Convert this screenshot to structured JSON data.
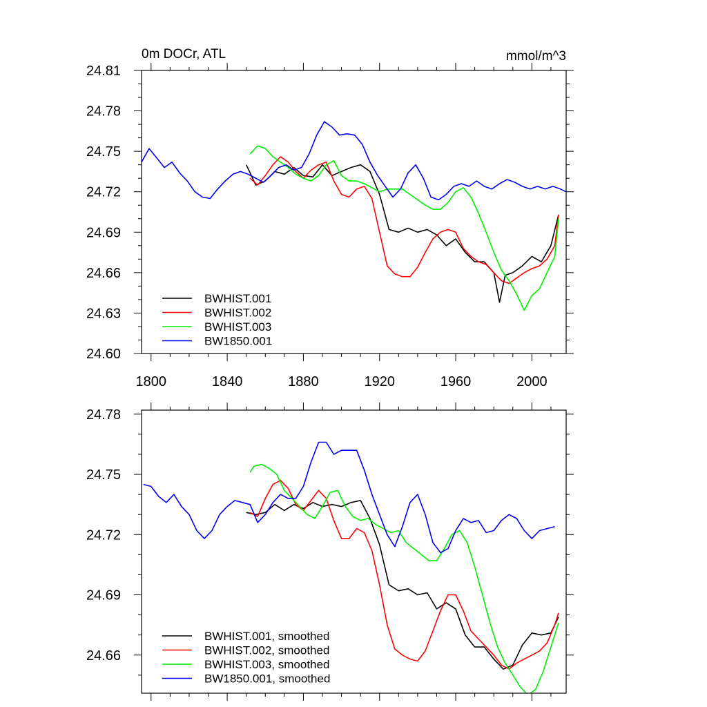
{
  "chart_data": [
    {
      "type": "line",
      "title_left": "0m DOCr, ATL",
      "title_right": "mmol/m^3",
      "xlabel": "",
      "ylabel": "",
      "xlim": [
        1795,
        2018
      ],
      "ylim": [
        24.6,
        24.81
      ],
      "xticks": [
        1800,
        1840,
        1880,
        1920,
        1960,
        2000
      ],
      "xtick_labels": [
        "1800",
        "1840",
        "1880",
        "1920",
        "1960",
        "2000"
      ],
      "yticks": [
        24.6,
        24.63,
        24.66,
        24.69,
        24.72,
        24.75,
        24.78,
        24.81
      ],
      "ytick_labels": [
        "24.60",
        "24.63",
        "24.66",
        "24.69",
        "24.72",
        "24.75",
        "24.78",
        "24.81"
      ],
      "legend_position": "bottom-left",
      "series": [
        {
          "name": "BWHIST.001",
          "color": "#000000",
          "x": [
            1850,
            1855,
            1860,
            1865,
            1870,
            1875,
            1880,
            1885,
            1890,
            1895,
            1900,
            1905,
            1910,
            1915,
            1920,
            1925,
            1930,
            1935,
            1940,
            1945,
            1950,
            1955,
            1960,
            1965,
            1970,
            1975,
            1980,
            1983,
            1986,
            1990,
            1995,
            2000,
            2005,
            2010,
            2014
          ],
          "values": [
            24.74,
            24.725,
            24.728,
            24.735,
            24.733,
            24.738,
            24.732,
            24.731,
            24.74,
            24.732,
            24.735,
            24.738,
            24.74,
            24.735,
            24.718,
            24.692,
            24.69,
            24.693,
            24.69,
            24.692,
            24.688,
            24.68,
            24.685,
            24.675,
            24.668,
            24.668,
            24.66,
            24.638,
            24.658,
            24.66,
            24.665,
            24.672,
            24.668,
            24.68,
            24.703
          ]
        },
        {
          "name": "BWHIST.002",
          "color": "#ff0000",
          "x": [
            1852,
            1856,
            1860,
            1864,
            1868,
            1872,
            1876,
            1880,
            1884,
            1888,
            1892,
            1896,
            1900,
            1904,
            1908,
            1912,
            1916,
            1920,
            1924,
            1928,
            1932,
            1936,
            1940,
            1944,
            1948,
            1952,
            1956,
            1960,
            1964,
            1968,
            1972,
            1976,
            1980,
            1984,
            1988,
            1992,
            1996,
            2000,
            2004,
            2008,
            2012,
            2014
          ],
          "values": [
            24.73,
            24.725,
            24.732,
            24.74,
            24.746,
            24.742,
            24.735,
            24.73,
            24.736,
            24.74,
            24.742,
            24.728,
            24.718,
            24.716,
            24.722,
            24.724,
            24.715,
            24.69,
            24.665,
            24.659,
            24.657,
            24.657,
            24.664,
            24.675,
            24.685,
            24.69,
            24.692,
            24.69,
            24.678,
            24.672,
            24.668,
            24.666,
            24.66,
            24.654,
            24.652,
            24.656,
            24.66,
            24.663,
            24.665,
            24.67,
            24.68,
            24.703
          ]
        },
        {
          "name": "BWHIST.003",
          "color": "#00ee00",
          "x": [
            1852,
            1856,
            1860,
            1864,
            1868,
            1872,
            1876,
            1880,
            1884,
            1888,
            1892,
            1896,
            1900,
            1904,
            1908,
            1912,
            1916,
            1920,
            1924,
            1928,
            1932,
            1936,
            1940,
            1944,
            1948,
            1952,
            1956,
            1960,
            1964,
            1968,
            1972,
            1976,
            1980,
            1984,
            1988,
            1992,
            1996,
            2000,
            2004,
            2008,
            2012,
            2014
          ],
          "values": [
            24.748,
            24.754,
            24.752,
            24.746,
            24.742,
            24.738,
            24.733,
            24.73,
            24.728,
            24.732,
            24.74,
            24.743,
            24.732,
            24.728,
            24.728,
            24.726,
            24.723,
            24.72,
            24.722,
            24.722,
            24.722,
            24.718,
            24.714,
            24.71,
            24.707,
            24.707,
            24.712,
            24.72,
            24.723,
            24.716,
            24.704,
            24.69,
            24.675,
            24.662,
            24.654,
            24.644,
            24.632,
            24.643,
            24.648,
            24.66,
            24.672,
            24.7
          ]
        },
        {
          "name": "BW1850.001",
          "color": "#0000ee",
          "x": [
            1795,
            1799,
            1803,
            1807,
            1811,
            1815,
            1819,
            1823,
            1827,
            1831,
            1835,
            1839,
            1843,
            1847,
            1851,
            1855,
            1859,
            1863,
            1867,
            1871,
            1875,
            1879,
            1883,
            1887,
            1891,
            1895,
            1899,
            1903,
            1907,
            1911,
            1915,
            1919,
            1923,
            1927,
            1931,
            1935,
            1939,
            1943,
            1947,
            1951,
            1955,
            1959,
            1963,
            1967,
            1971,
            1975,
            1979,
            1983,
            1987,
            1991,
            1995,
            1999,
            2003,
            2007,
            2011,
            2015,
            2018
          ],
          "values": [
            24.742,
            24.752,
            24.745,
            24.738,
            24.742,
            24.734,
            24.728,
            24.72,
            24.716,
            24.715,
            24.722,
            24.728,
            24.733,
            24.735,
            24.733,
            24.73,
            24.727,
            24.732,
            24.738,
            24.74,
            24.736,
            24.738,
            24.748,
            24.762,
            24.772,
            24.768,
            24.762,
            24.763,
            24.762,
            24.755,
            24.742,
            24.732,
            24.724,
            24.716,
            24.722,
            24.734,
            24.74,
            24.73,
            24.716,
            24.714,
            24.718,
            24.724,
            24.726,
            24.724,
            24.728,
            24.724,
            24.722,
            24.726,
            24.729,
            24.727,
            24.724,
            24.722,
            24.724,
            24.722,
            24.724,
            24.722,
            24.72
          ]
        }
      ]
    },
    {
      "type": "line",
      "xlabel": "",
      "ylabel": "",
      "xlim": [
        1795,
        2018
      ],
      "ylim": [
        24.641,
        24.782
      ],
      "xticks": [
        1800,
        1840,
        1880,
        1920,
        1960,
        2000
      ],
      "yticks": [
        24.66,
        24.69,
        24.72,
        24.75,
        24.78
      ],
      "ytick_labels": [
        "24.66",
        "24.69",
        "24.72",
        "24.75",
        "24.78"
      ],
      "legend_position": "bottom-left",
      "series": [
        {
          "name": "BWHIST.001, smoothed",
          "color": "#000000",
          "x": [
            1850,
            1855,
            1860,
            1865,
            1870,
            1875,
            1880,
            1885,
            1890,
            1895,
            1900,
            1905,
            1910,
            1915,
            1920,
            1925,
            1930,
            1935,
            1940,
            1945,
            1950,
            1955,
            1960,
            1965,
            1970,
            1975,
            1980,
            1985,
            1990,
            1995,
            2000,
            2005,
            2010,
            2014
          ],
          "values": [
            24.731,
            24.73,
            24.731,
            24.735,
            24.732,
            24.735,
            24.733,
            24.736,
            24.734,
            24.735,
            24.734,
            24.736,
            24.737,
            24.728,
            24.715,
            24.695,
            24.692,
            24.693,
            24.69,
            24.691,
            24.683,
            24.686,
            24.683,
            24.67,
            24.664,
            24.664,
            24.658,
            24.653,
            24.655,
            24.665,
            24.671,
            24.67,
            24.671,
            24.679
          ]
        },
        {
          "name": "BWHIST.002, smoothed",
          "color": "#ff0000",
          "x": [
            1852,
            1856,
            1860,
            1864,
            1868,
            1872,
            1876,
            1880,
            1884,
            1888,
            1892,
            1896,
            1900,
            1904,
            1908,
            1912,
            1916,
            1920,
            1924,
            1928,
            1932,
            1936,
            1940,
            1944,
            1948,
            1952,
            1956,
            1960,
            1964,
            1968,
            1972,
            1976,
            1980,
            1984,
            1988,
            1992,
            1996,
            2000,
            2004,
            2008,
            2012,
            2014
          ],
          "values": [
            24.731,
            24.729,
            24.738,
            24.745,
            24.747,
            24.743,
            24.735,
            24.732,
            24.737,
            24.742,
            24.738,
            24.727,
            24.718,
            24.718,
            24.723,
            24.721,
            24.712,
            24.695,
            24.675,
            24.663,
            24.66,
            24.658,
            24.657,
            24.662,
            24.672,
            24.682,
            24.69,
            24.69,
            24.682,
            24.672,
            24.668,
            24.664,
            24.66,
            24.655,
            24.653,
            24.656,
            24.658,
            24.66,
            24.662,
            24.666,
            24.675,
            24.681
          ]
        },
        {
          "name": "BWHIST.003, smoothed",
          "color": "#00ee00",
          "x": [
            1852,
            1854,
            1858,
            1862,
            1866,
            1870,
            1874,
            1878,
            1882,
            1886,
            1890,
            1894,
            1898,
            1902,
            1906,
            1910,
            1914,
            1918,
            1922,
            1926,
            1930,
            1934,
            1938,
            1942,
            1946,
            1950,
            1954,
            1958,
            1962,
            1966,
            1970,
            1974,
            1978,
            1982,
            1986,
            1990,
            1994,
            1998,
            2002,
            2006,
            2010,
            2014
          ],
          "values": [
            24.751,
            24.754,
            24.755,
            24.753,
            24.75,
            24.742,
            24.738,
            24.734,
            24.73,
            24.728,
            24.734,
            24.741,
            24.742,
            24.734,
            24.729,
            24.727,
            24.728,
            24.725,
            24.723,
            24.721,
            24.722,
            24.716,
            24.713,
            24.71,
            24.707,
            24.707,
            24.713,
            24.72,
            24.722,
            24.716,
            24.704,
            24.69,
            24.676,
            24.664,
            24.656,
            24.65,
            24.644,
            24.64,
            24.643,
            24.652,
            24.664,
            24.676
          ]
        },
        {
          "name": "BW1850.001, smoothed",
          "color": "#0000ee",
          "x": [
            1796,
            1800,
            1804,
            1808,
            1812,
            1816,
            1820,
            1824,
            1828,
            1832,
            1836,
            1840,
            1844,
            1848,
            1852,
            1856,
            1860,
            1864,
            1868,
            1872,
            1876,
            1880,
            1884,
            1888,
            1892,
            1896,
            1900,
            1904,
            1908,
            1912,
            1916,
            1920,
            1924,
            1928,
            1932,
            1936,
            1940,
            1944,
            1948,
            1952,
            1956,
            1960,
            1964,
            1968,
            1972,
            1976,
            1980,
            1984,
            1988,
            1992,
            1996,
            2000,
            2004,
            2008,
            2012
          ],
          "values": [
            24.745,
            24.744,
            24.739,
            24.736,
            24.74,
            24.734,
            24.73,
            24.722,
            24.718,
            24.722,
            24.73,
            24.734,
            24.737,
            24.736,
            24.735,
            24.726,
            24.73,
            24.736,
            24.74,
            24.738,
            24.738,
            24.744,
            24.756,
            24.766,
            24.766,
            24.76,
            24.762,
            24.762,
            24.762,
            24.752,
            24.74,
            24.73,
            24.72,
            24.714,
            24.724,
            24.736,
            24.74,
            24.73,
            24.716,
            24.711,
            24.713,
            24.722,
            24.728,
            24.726,
            24.727,
            24.721,
            24.722,
            24.727,
            24.73,
            24.728,
            24.722,
            24.718,
            24.722,
            24.723,
            24.724
          ]
        }
      ]
    }
  ]
}
